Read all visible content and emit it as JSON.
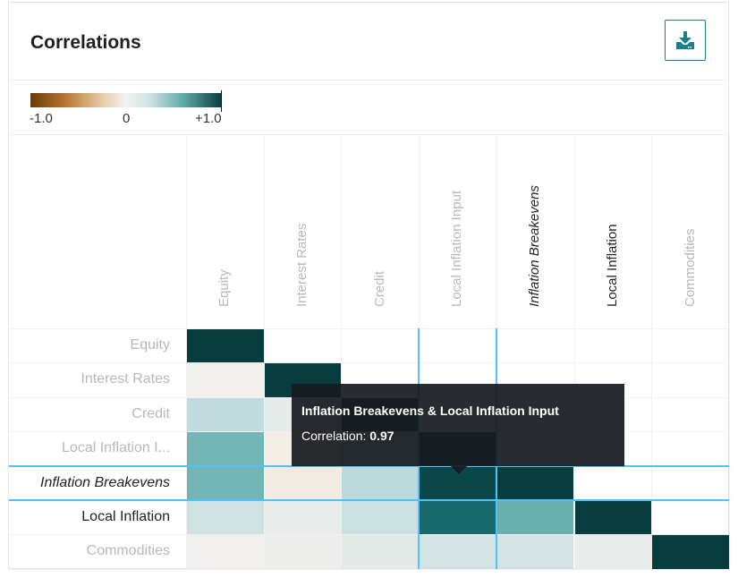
{
  "card": {
    "title": "Correlations",
    "download_icon": "download-icon"
  },
  "colors": {
    "accent": "#1a7f86",
    "highlight": "#4fc3f7",
    "negative": "#6b3a0c",
    "neutral": "#f4f1ee",
    "positive": "#083d3f"
  },
  "chart_data": {
    "type": "heatmap",
    "title": "Correlations",
    "legend": {
      "ticks": [
        "-1.0",
        "0",
        "+1.0"
      ],
      "range": [
        -1.0,
        1.0
      ],
      "marker_value": 0.97,
      "placement": "top-left"
    },
    "labels": [
      "Equity",
      "Interest Rates",
      "Credit",
      "Local Inflation Input",
      "Inflation Breakevens",
      "Local Inflation",
      "Commodities"
    ],
    "row_display_labels": [
      "Equity",
      "Interest Rates",
      "Credit",
      "Local Inflation I...",
      "Inflation Breakevens",
      "Local Inflation",
      "Commodities"
    ],
    "label_styles": [
      "muted",
      "muted",
      "muted",
      "muted",
      "italic",
      "dark",
      "muted"
    ],
    "matrix": [
      [
        1.0,
        null,
        null,
        null,
        null,
        null,
        null
      ],
      [
        0.02,
        1.0,
        null,
        null,
        null,
        null,
        null
      ],
      [
        0.35,
        0.1,
        1.0,
        null,
        null,
        null,
        null
      ],
      [
        0.75,
        -0.1,
        0.35,
        1.0,
        null,
        null,
        null
      ],
      [
        0.75,
        -0.15,
        0.38,
        0.97,
        1.0,
        null,
        null
      ],
      [
        0.25,
        0.08,
        0.28,
        0.85,
        0.8,
        1.0,
        null
      ],
      [
        0.03,
        0.05,
        0.12,
        0.22,
        0.22,
        0.08,
        1.0
      ]
    ],
    "highlight": {
      "row": 4,
      "col": 3
    }
  },
  "tooltip": {
    "title": "Inflation Breakevens & Local Inflation Input",
    "label": "Correlation: ",
    "value": "0.97"
  }
}
